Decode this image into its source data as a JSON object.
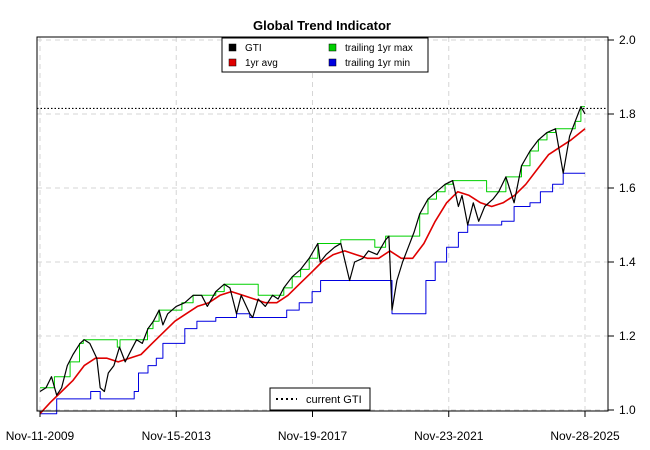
{
  "chart_data": {
    "type": "line",
    "title": "Global Trend Indicator",
    "xlabel": "",
    "ylabel": "",
    "x_ticks": [
      "Nov-11-2009",
      "Nov-15-2013",
      "Nov-19-2017",
      "Nov-23-2021",
      "Nov-28-2025"
    ],
    "x_range": [
      "2009-11-11",
      "2025-11-28"
    ],
    "y_ticks": [
      "1.0",
      "1.2",
      "1.4",
      "1.6",
      "1.8",
      "2.0"
    ],
    "ylim": [
      1.0,
      2.0
    ],
    "y_axis_side": "right",
    "grid": true,
    "reference_line": {
      "label": "current GTI",
      "value": 1.815,
      "style": "dotted"
    },
    "legend_top": {
      "placement": "top-center",
      "entries": [
        {
          "label": "GTI",
          "color": "#000000"
        },
        {
          "label": "1yr avg",
          "color": "#e00000"
        },
        {
          "label": "trailing 1yr max",
          "color": "#00d000"
        },
        {
          "label": "trailing 1yr min",
          "color": "#0000e0"
        }
      ]
    },
    "legend_bottom": {
      "placement": "bottom-center",
      "entries": [
        {
          "label": "current GTI",
          "style": "dotted"
        }
      ]
    },
    "series": [
      {
        "name": "GTI",
        "color": "#000000",
        "data": [
          [
            "2009-11-11",
            1.05
          ],
          [
            "2010-01-15",
            1.06
          ],
          [
            "2010-03-15",
            1.09
          ],
          [
            "2010-05-10",
            1.04
          ],
          [
            "2010-07-01",
            1.06
          ],
          [
            "2010-09-01",
            1.12
          ],
          [
            "2010-11-01",
            1.15
          ],
          [
            "2011-01-15",
            1.18
          ],
          [
            "2011-03-01",
            1.19
          ],
          [
            "2011-05-01",
            1.18
          ],
          [
            "2011-07-15",
            1.14
          ],
          [
            "2011-08-20",
            1.06
          ],
          [
            "2011-10-05",
            1.05
          ],
          [
            "2011-11-15",
            1.1
          ],
          [
            "2012-01-15",
            1.12
          ],
          [
            "2012-03-15",
            1.17
          ],
          [
            "2012-05-15",
            1.13
          ],
          [
            "2012-07-15",
            1.16
          ],
          [
            "2012-09-15",
            1.19
          ],
          [
            "2012-11-15",
            1.18
          ],
          [
            "2013-01-15",
            1.22
          ],
          [
            "2013-03-15",
            1.24
          ],
          [
            "2013-05-15",
            1.27
          ],
          [
            "2013-06-25",
            1.23
          ],
          [
            "2013-08-15",
            1.26
          ],
          [
            "2013-11-15",
            1.28
          ],
          [
            "2014-02-15",
            1.29
          ],
          [
            "2014-05-15",
            1.31
          ],
          [
            "2014-08-15",
            1.31
          ],
          [
            "2014-10-15",
            1.28
          ],
          [
            "2015-01-15",
            1.32
          ],
          [
            "2015-04-15",
            1.34
          ],
          [
            "2015-06-15",
            1.33
          ],
          [
            "2015-08-25",
            1.26
          ],
          [
            "2015-10-15",
            1.31
          ],
          [
            "2016-01-15",
            1.26
          ],
          [
            "2016-02-15",
            1.25
          ],
          [
            "2016-04-15",
            1.3
          ],
          [
            "2016-06-30",
            1.28
          ],
          [
            "2016-09-15",
            1.31
          ],
          [
            "2016-11-15",
            1.3
          ],
          [
            "2017-01-15",
            1.33
          ],
          [
            "2017-04-15",
            1.36
          ],
          [
            "2017-07-15",
            1.38
          ],
          [
            "2017-10-15",
            1.41
          ],
          [
            "2018-01-15",
            1.45
          ],
          [
            "2018-02-10",
            1.4
          ],
          [
            "2018-04-15",
            1.42
          ],
          [
            "2018-07-15",
            1.44
          ],
          [
            "2018-09-20",
            1.45
          ],
          [
            "2018-12-24",
            1.35
          ],
          [
            "2019-02-15",
            1.4
          ],
          [
            "2019-05-15",
            1.41
          ],
          [
            "2019-07-15",
            1.43
          ],
          [
            "2019-10-15",
            1.42
          ],
          [
            "2020-01-15",
            1.46
          ],
          [
            "2020-02-19",
            1.47
          ],
          [
            "2020-03-23",
            1.27
          ],
          [
            "2020-05-15",
            1.35
          ],
          [
            "2020-07-15",
            1.4
          ],
          [
            "2020-09-15",
            1.44
          ],
          [
            "2020-11-15",
            1.48
          ],
          [
            "2021-01-15",
            1.53
          ],
          [
            "2021-04-15",
            1.57
          ],
          [
            "2021-07-15",
            1.59
          ],
          [
            "2021-10-15",
            1.61
          ],
          [
            "2022-01-05",
            1.62
          ],
          [
            "2022-03-08",
            1.55
          ],
          [
            "2022-04-15",
            1.58
          ],
          [
            "2022-06-16",
            1.5
          ],
          [
            "2022-08-15",
            1.56
          ],
          [
            "2022-10-12",
            1.51
          ],
          [
            "2022-12-15",
            1.55
          ],
          [
            "2023-03-15",
            1.57
          ],
          [
            "2023-05-15",
            1.59
          ],
          [
            "2023-07-31",
            1.63
          ],
          [
            "2023-10-27",
            1.56
          ],
          [
            "2024-01-15",
            1.66
          ],
          [
            "2024-04-15",
            1.7
          ],
          [
            "2024-07-15",
            1.73
          ],
          [
            "2024-10-15",
            1.75
          ],
          [
            "2025-01-15",
            1.76
          ],
          [
            "2025-04-08",
            1.64
          ],
          [
            "2025-06-15",
            1.74
          ],
          [
            "2025-08-15",
            1.78
          ],
          [
            "2025-10-15",
            1.82
          ],
          [
            "2025-11-28",
            1.8
          ]
        ]
      },
      {
        "name": "1yr avg",
        "color": "#e00000",
        "data": [
          [
            "2009-11-11",
            0.99
          ],
          [
            "2010-03-01",
            1.02
          ],
          [
            "2010-07-01",
            1.05
          ],
          [
            "2010-11-01",
            1.08
          ],
          [
            "2011-03-01",
            1.12
          ],
          [
            "2011-07-01",
            1.14
          ],
          [
            "2011-11-01",
            1.14
          ],
          [
            "2012-03-01",
            1.13
          ],
          [
            "2012-07-01",
            1.14
          ],
          [
            "2012-11-01",
            1.15
          ],
          [
            "2013-03-01",
            1.18
          ],
          [
            "2013-07-01",
            1.21
          ],
          [
            "2013-11-01",
            1.24
          ],
          [
            "2014-03-01",
            1.26
          ],
          [
            "2014-07-01",
            1.28
          ],
          [
            "2014-11-01",
            1.29
          ],
          [
            "2015-03-01",
            1.31
          ],
          [
            "2015-07-01",
            1.32
          ],
          [
            "2015-11-01",
            1.31
          ],
          [
            "2016-03-01",
            1.3
          ],
          [
            "2016-07-01",
            1.29
          ],
          [
            "2016-11-01",
            1.29
          ],
          [
            "2017-03-01",
            1.31
          ],
          [
            "2017-07-01",
            1.34
          ],
          [
            "2017-11-01",
            1.37
          ],
          [
            "2018-03-01",
            1.4
          ],
          [
            "2018-07-01",
            1.42
          ],
          [
            "2018-11-01",
            1.43
          ],
          [
            "2019-03-01",
            1.42
          ],
          [
            "2019-07-01",
            1.41
          ],
          [
            "2019-11-01",
            1.41
          ],
          [
            "2020-03-01",
            1.43
          ],
          [
            "2020-07-01",
            1.41
          ],
          [
            "2020-11-01",
            1.41
          ],
          [
            "2021-03-01",
            1.45
          ],
          [
            "2021-07-01",
            1.51
          ],
          [
            "2021-11-01",
            1.56
          ],
          [
            "2022-03-01",
            1.59
          ],
          [
            "2022-07-01",
            1.58
          ],
          [
            "2022-11-01",
            1.56
          ],
          [
            "2023-03-01",
            1.55
          ],
          [
            "2023-07-01",
            1.56
          ],
          [
            "2023-11-01",
            1.58
          ],
          [
            "2024-03-01",
            1.61
          ],
          [
            "2024-07-01",
            1.65
          ],
          [
            "2024-11-01",
            1.69
          ],
          [
            "2025-03-01",
            1.71
          ],
          [
            "2025-07-01",
            1.73
          ],
          [
            "2025-11-28",
            1.76
          ]
        ]
      },
      {
        "name": "trailing 1yr max",
        "color": "#00d000",
        "data": [
          [
            "2009-11-11",
            1.06
          ],
          [
            "2010-04-15",
            1.09
          ],
          [
            "2010-10-01",
            1.13
          ],
          [
            "2011-01-10",
            1.18
          ],
          [
            "2011-02-20",
            1.19
          ],
          [
            "2012-02-20",
            1.17
          ],
          [
            "2012-03-20",
            1.19
          ],
          [
            "2013-01-10",
            1.22
          ],
          [
            "2013-03-10",
            1.24
          ],
          [
            "2013-05-15",
            1.27
          ],
          [
            "2014-01-15",
            1.29
          ],
          [
            "2014-05-15",
            1.31
          ],
          [
            "2015-01-15",
            1.32
          ],
          [
            "2015-04-15",
            1.34
          ],
          [
            "2016-04-15",
            1.31
          ],
          [
            "2016-09-15",
            1.31
          ],
          [
            "2017-01-15",
            1.33
          ],
          [
            "2017-04-15",
            1.36
          ],
          [
            "2017-07-15",
            1.38
          ],
          [
            "2017-10-15",
            1.41
          ],
          [
            "2018-01-15",
            1.45
          ],
          [
            "2018-09-20",
            1.46
          ],
          [
            "2019-09-20",
            1.44
          ],
          [
            "2020-01-15",
            1.47
          ],
          [
            "2021-01-15",
            1.53
          ],
          [
            "2021-04-15",
            1.57
          ],
          [
            "2021-07-15",
            1.59
          ],
          [
            "2021-10-15",
            1.61
          ],
          [
            "2022-01-05",
            1.62
          ],
          [
            "2023-01-05",
            1.59
          ],
          [
            "2023-07-31",
            1.63
          ],
          [
            "2024-01-15",
            1.66
          ],
          [
            "2024-04-15",
            1.7
          ],
          [
            "2024-07-15",
            1.73
          ],
          [
            "2024-10-15",
            1.75
          ],
          [
            "2025-01-15",
            1.76
          ],
          [
            "2025-08-15",
            1.78
          ],
          [
            "2025-10-15",
            1.82
          ],
          [
            "2025-11-28",
            1.82
          ]
        ]
      },
      {
        "name": "trailing 1yr min",
        "color": "#0000e0",
        "data": [
          [
            "2009-11-11",
            0.99
          ],
          [
            "2010-05-10",
            1.03
          ],
          [
            "2011-05-10",
            1.05
          ],
          [
            "2011-08-20",
            1.03
          ],
          [
            "2012-08-20",
            1.05
          ],
          [
            "2012-10-05",
            1.1
          ],
          [
            "2013-01-15",
            1.12
          ],
          [
            "2013-04-15",
            1.14
          ],
          [
            "2013-06-25",
            1.18
          ],
          [
            "2014-02-15",
            1.22
          ],
          [
            "2014-06-25",
            1.24
          ],
          [
            "2015-01-15",
            1.25
          ],
          [
            "2015-08-25",
            1.26
          ],
          [
            "2016-01-15",
            1.25
          ],
          [
            "2016-06-30",
            1.25
          ],
          [
            "2017-02-15",
            1.27
          ],
          [
            "2017-06-30",
            1.29
          ],
          [
            "2017-11-15",
            1.32
          ],
          [
            "2018-02-15",
            1.35
          ],
          [
            "2018-12-24",
            1.35
          ],
          [
            "2019-12-24",
            1.35
          ],
          [
            "2020-03-23",
            1.26
          ],
          [
            "2021-03-23",
            1.35
          ],
          [
            "2021-07-01",
            1.4
          ],
          [
            "2021-11-01",
            1.44
          ],
          [
            "2022-03-08",
            1.48
          ],
          [
            "2022-06-16",
            1.5
          ],
          [
            "2023-06-16",
            1.51
          ],
          [
            "2023-10-27",
            1.55
          ],
          [
            "2024-04-15",
            1.56
          ],
          [
            "2024-08-05",
            1.59
          ],
          [
            "2024-12-15",
            1.61
          ],
          [
            "2025-04-08",
            1.64
          ],
          [
            "2025-11-28",
            1.64
          ]
        ]
      }
    ]
  }
}
